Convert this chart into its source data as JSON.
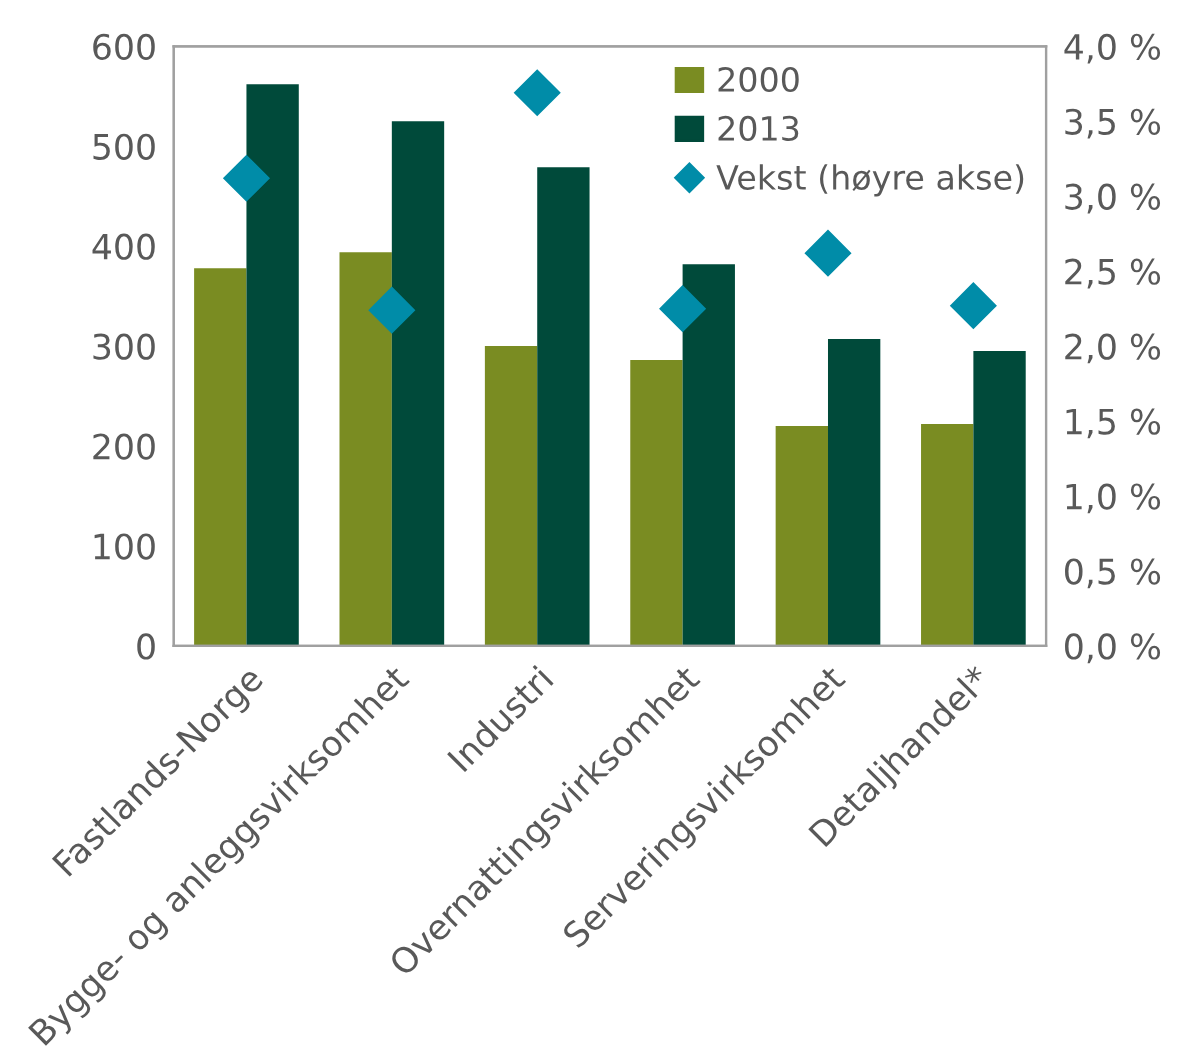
{
  "chart_data": {
    "type": "bar",
    "categories": [
      "Fastlands-Norge",
      "Bygge- og anleggsvirksomhet",
      "Industri",
      "Overnattingsvirksomhet",
      "Serveringsvirksomhet",
      "Detaljhandel*"
    ],
    "series": [
      {
        "name": "2000",
        "color": "#7a8c22",
        "values": [
          378,
          394,
          300,
          286,
          220,
          222
        ]
      },
      {
        "name": "2013",
        "color": "#004a3a",
        "values": [
          562,
          525,
          479,
          382,
          307,
          295
        ]
      },
      {
        "name": "Vekst (høyre akse)",
        "type": "scatter",
        "axis": "y2",
        "color": "#008ca8",
        "marker": "diamond",
        "values": [
          3.12,
          2.24,
          3.69,
          2.25,
          2.62,
          2.27
        ]
      }
    ],
    "ylim": [
      0,
      600
    ],
    "yticks": [
      0,
      100,
      200,
      300,
      400,
      500,
      600
    ],
    "y2lim": [
      0,
      4.0
    ],
    "y2ticks": [
      {
        "value": 0,
        "label": "0,0 %"
      },
      {
        "value": 0.5,
        "label": "0,5 %"
      },
      {
        "value": 1.0,
        "label": "1,0 %"
      },
      {
        "value": 1.5,
        "label": "1,5 %"
      },
      {
        "value": 2.0,
        "label": "2,0 %"
      },
      {
        "value": 2.5,
        "label": "2,5 %"
      },
      {
        "value": 3.0,
        "label": "3,0 %"
      },
      {
        "value": 3.5,
        "label": "3,5 %"
      },
      {
        "value": 4.0,
        "label": "4,0 %"
      }
    ],
    "grid": false,
    "legend": "top right"
  }
}
